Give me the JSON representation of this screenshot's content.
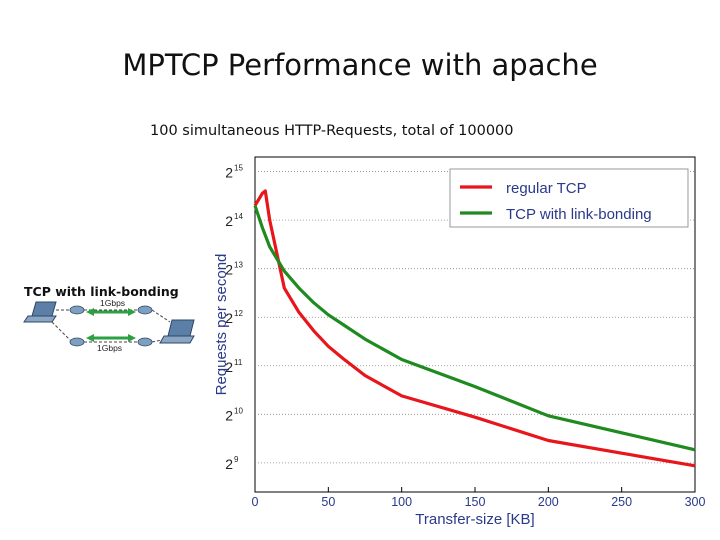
{
  "slide": {
    "title": "MPTCP Performance with apache",
    "subtitle": "100 simultaneous HTTP-Requests, total of 100000"
  },
  "diagram": {
    "title": "TCP with link-bonding",
    "link_top": "1Gbps",
    "link_bottom": "1Gbps",
    "arrow_color": "#2ea043"
  },
  "chart_data": {
    "type": "line",
    "title": "",
    "xlabel": "Transfer-size [KB]",
    "ylabel": "Requests per second",
    "xlim": [
      0,
      300
    ],
    "y_scale": "log2",
    "ylim_exp": [
      8.4,
      15.3
    ],
    "x_ticks": [
      0,
      50,
      100,
      150,
      200,
      250,
      300
    ],
    "y_ticks": [
      {
        "base": "2",
        "exp": "15",
        "value": 15
      },
      {
        "base": "2",
        "exp": "14",
        "value": 14
      },
      {
        "base": "2",
        "exp": "13",
        "value": 13
      },
      {
        "base": "2",
        "exp": "12",
        "value": 12
      },
      {
        "base": "2",
        "exp": "11",
        "value": 11
      },
      {
        "base": "2",
        "exp": "10",
        "value": 10
      },
      {
        "base": "2",
        "exp": "9",
        "value": 9
      }
    ],
    "grid": true,
    "legend_position": "top-right",
    "series": [
      {
        "name": "regular TCP",
        "color": "#e8151b",
        "x": [
          0,
          3,
          5,
          7,
          10,
          20,
          30,
          40,
          50,
          60,
          75,
          100,
          150,
          200,
          250,
          300
        ],
        "log2_y": [
          14.3,
          14.45,
          14.55,
          14.6,
          14.0,
          12.6,
          12.1,
          11.72,
          11.4,
          11.15,
          10.8,
          10.38,
          9.94,
          9.46,
          9.2,
          8.94
        ]
      },
      {
        "name": "TCP with link-bonding",
        "color": "#1f8a1f",
        "x": [
          0,
          5,
          10,
          20,
          30,
          40,
          50,
          60,
          75,
          100,
          150,
          200,
          250,
          300
        ],
        "log2_y": [
          14.3,
          13.85,
          13.45,
          12.95,
          12.6,
          12.3,
          12.05,
          11.85,
          11.55,
          11.13,
          10.57,
          9.97,
          9.62,
          9.27
        ]
      }
    ]
  }
}
